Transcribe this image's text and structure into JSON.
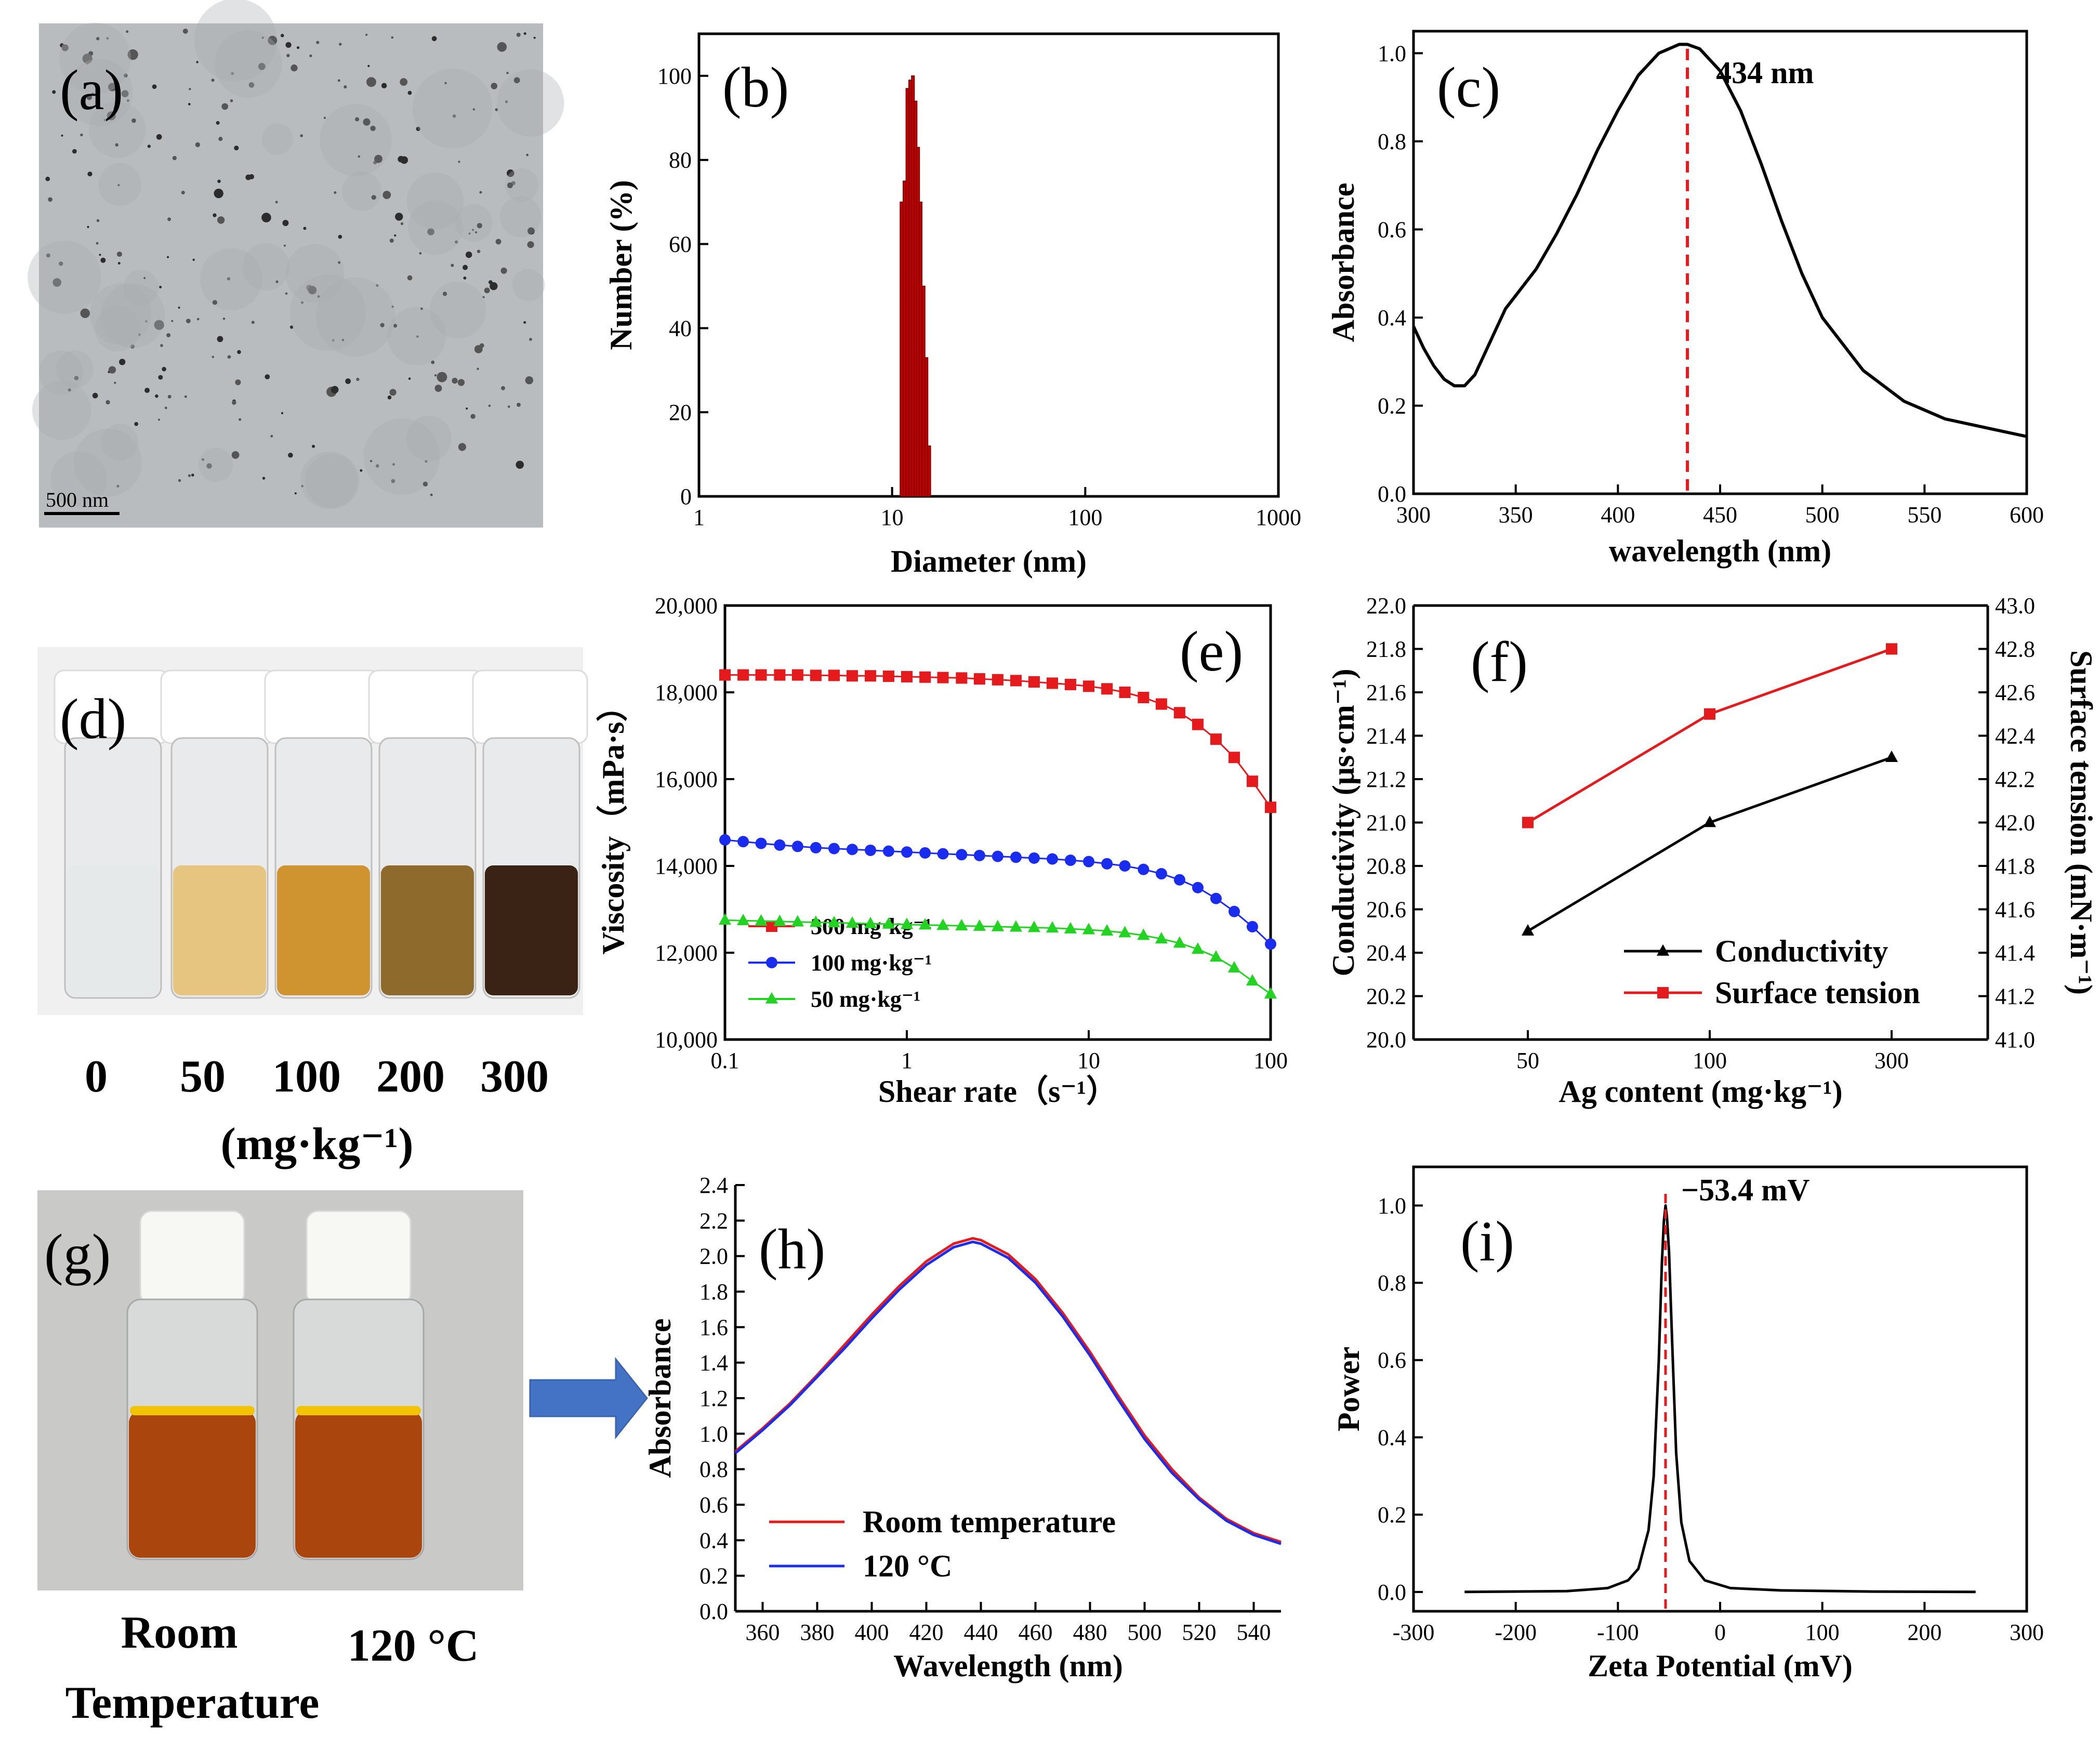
{
  "figure": {
    "panel_labels": [
      "(a)",
      "(b)",
      "(c)",
      "(d)",
      "(e)",
      "(f)",
      "(g)",
      "(h)",
      "(i)"
    ],
    "colors": {
      "red": "#e41a1c",
      "blue": "#1a2cf0",
      "green": "#22d322",
      "black": "#000000",
      "bar": "#c00000",
      "arrow": "#4472c4"
    }
  },
  "panel_a": {
    "label": "(a)",
    "scale_bar": "500 nm",
    "image": "tem-micrograph"
  },
  "panel_d": {
    "label": "(d)",
    "vial_labels": [
      "0",
      "50",
      "100",
      "200",
      "300"
    ],
    "unit": "(mg·kg⁻¹)",
    "vial_colors": [
      "#e6e9ea",
      "#e5c57f",
      "#cf9330",
      "#8e6a2c",
      "#3a2314"
    ]
  },
  "panel_g": {
    "label": "(g)",
    "vial_labels": [
      "Room\nTemperature",
      "120 °C"
    ],
    "vial_label_lines": [
      "Room",
      "Temperature",
      "120 °C"
    ]
  },
  "chart_data": [
    {
      "panel": "(b)",
      "type": "bar",
      "title": "",
      "xlabel": "Diameter (nm)",
      "ylabel": "Number (%)",
      "xscale": "log",
      "xlim": [
        1,
        1000
      ],
      "ylim": [
        0,
        110
      ],
      "xticks": [
        "1",
        "10",
        "100",
        "1000"
      ],
      "yticks": [
        "0",
        "20",
        "40",
        "60",
        "80",
        "100"
      ],
      "x": [
        11.0,
        11.4,
        11.8,
        12.2,
        12.6,
        13.0,
        13.4,
        13.8,
        14.3,
        14.8,
        15.3
      ],
      "values": [
        70,
        75,
        97,
        99,
        100,
        94,
        83,
        70,
        50,
        33,
        12
      ]
    },
    {
      "panel": "(c)",
      "type": "line",
      "xlabel": "wavelength (nm)",
      "ylabel": "Absorbance",
      "xlim": [
        300,
        600
      ],
      "ylim": [
        0,
        1.05
      ],
      "xticks": [
        "300",
        "350",
        "400",
        "450",
        "500",
        "550",
        "600"
      ],
      "yticks": [
        "0.0",
        "0.2",
        "0.4",
        "0.6",
        "0.8",
        "1.0"
      ],
      "annotation": "434 nm",
      "peak_x": 434,
      "series": [
        {
          "name": "Absorbance",
          "x": [
            300,
            305,
            310,
            315,
            320,
            325,
            330,
            335,
            340,
            345,
            350,
            360,
            370,
            380,
            390,
            400,
            410,
            420,
            430,
            434,
            440,
            450,
            460,
            470,
            480,
            490,
            500,
            520,
            540,
            560,
            580,
            600
          ],
          "y": [
            0.38,
            0.33,
            0.29,
            0.26,
            0.245,
            0.245,
            0.27,
            0.32,
            0.37,
            0.42,
            0.45,
            0.51,
            0.59,
            0.68,
            0.78,
            0.87,
            0.95,
            1.0,
            1.02,
            1.02,
            1.01,
            0.96,
            0.87,
            0.75,
            0.62,
            0.5,
            0.4,
            0.28,
            0.21,
            0.17,
            0.15,
            0.13
          ]
        }
      ]
    },
    {
      "panel": "(e)",
      "type": "line",
      "xlabel": "Shear rate（s⁻¹）",
      "ylabel": "Viscosity（mPa·s）",
      "xscale": "log",
      "xlim": [
        0.1,
        100
      ],
      "ylim": [
        10000,
        20000
      ],
      "xticks": [
        "0.1",
        "1",
        "10",
        "100"
      ],
      "yticks": [
        "10,000",
        "12,000",
        "14,000",
        "16,000",
        "18,000",
        "20,000"
      ],
      "legend": [
        "300 mg·kg⁻¹",
        "100 mg·kg⁻¹",
        "50 mg·kg⁻¹"
      ],
      "series": [
        {
          "name": "300 mg·kg⁻¹",
          "marker": "square",
          "color": "#e41a1c",
          "x": [
            0.1,
            0.126,
            0.158,
            0.2,
            0.251,
            0.316,
            0.398,
            0.501,
            0.631,
            0.794,
            1,
            1.26,
            1.58,
            2,
            2.51,
            3.16,
            3.98,
            5.01,
            6.31,
            7.94,
            10,
            12.6,
            15.8,
            20,
            25.1,
            31.6,
            39.8,
            50.1,
            63.1,
            79.4,
            100
          ],
          "y": [
            18400,
            18400,
            18400,
            18400,
            18400,
            18390,
            18390,
            18380,
            18380,
            18370,
            18360,
            18350,
            18340,
            18330,
            18310,
            18290,
            18270,
            18240,
            18210,
            18180,
            18140,
            18080,
            18000,
            17880,
            17730,
            17530,
            17260,
            16920,
            16500,
            15950,
            15350
          ]
        },
        {
          "name": "100 mg·kg⁻¹",
          "marker": "circle",
          "color": "#1a2cf0",
          "x": [
            0.1,
            0.126,
            0.158,
            0.2,
            0.251,
            0.316,
            0.398,
            0.501,
            0.631,
            0.794,
            1,
            1.26,
            1.58,
            2,
            2.51,
            3.16,
            3.98,
            5.01,
            6.31,
            7.94,
            10,
            12.6,
            15.8,
            20,
            25.1,
            31.6,
            39.8,
            50.1,
            63.1,
            79.4,
            100
          ],
          "y": [
            14600,
            14560,
            14520,
            14480,
            14450,
            14420,
            14400,
            14380,
            14360,
            14340,
            14320,
            14300,
            14280,
            14260,
            14240,
            14220,
            14200,
            14180,
            14160,
            14130,
            14100,
            14050,
            14000,
            13920,
            13820,
            13680,
            13500,
            13250,
            12950,
            12600,
            12200
          ]
        },
        {
          "name": "50 mg·kg⁻¹",
          "marker": "triangle",
          "color": "#22d322",
          "x": [
            0.1,
            0.126,
            0.158,
            0.2,
            0.251,
            0.316,
            0.398,
            0.501,
            0.631,
            0.794,
            1,
            1.26,
            1.58,
            2,
            2.51,
            3.16,
            3.98,
            5.01,
            6.31,
            7.94,
            10,
            12.6,
            15.8,
            20,
            25.1,
            31.6,
            39.8,
            50.1,
            63.1,
            79.4,
            100
          ],
          "y": [
            12750,
            12740,
            12730,
            12720,
            12710,
            12700,
            12690,
            12680,
            12670,
            12660,
            12650,
            12640,
            12630,
            12620,
            12610,
            12600,
            12590,
            12580,
            12570,
            12550,
            12530,
            12500,
            12460,
            12400,
            12320,
            12220,
            12080,
            11900,
            11650,
            11350,
            11050
          ]
        }
      ]
    },
    {
      "panel": "(f)",
      "type": "line",
      "xlabel": "Ag content (mg·kg⁻¹)",
      "ylabel": "Conductivity (μs·cm⁻¹)",
      "y2label": "Surface tension (mN·m⁻¹)",
      "categories": [
        "50",
        "100",
        "300"
      ],
      "ylim": [
        20.0,
        22.0
      ],
      "y2lim": [
        41.0,
        43.0
      ],
      "yticks": [
        "20.0",
        "20.2",
        "20.4",
        "20.6",
        "20.8",
        "21.0",
        "21.2",
        "21.4",
        "21.6",
        "21.8",
        "22.0"
      ],
      "y2ticks": [
        "41.0",
        "41.2",
        "41.4",
        "41.6",
        "41.8",
        "42.0",
        "42.2",
        "42.4",
        "42.6",
        "42.8",
        "43.0"
      ],
      "legend": [
        "Conductivity",
        "Surface tension"
      ],
      "series": [
        {
          "name": "Conductivity",
          "axis": "left",
          "marker": "triangle",
          "color": "#000000",
          "values": [
            20.5,
            21.0,
            21.3
          ]
        },
        {
          "name": "Surface tension",
          "axis": "right",
          "marker": "square",
          "color": "#e41a1c",
          "values": [
            42.0,
            42.5,
            42.8
          ]
        }
      ]
    },
    {
      "panel": "(h)",
      "type": "line",
      "xlabel": "Wavelength (nm)",
      "ylabel": "Absorbance",
      "xlim": [
        350,
        550
      ],
      "ylim": [
        0,
        2.4
      ],
      "xticks": [
        "360",
        "380",
        "400",
        "420",
        "440",
        "460",
        "480",
        "500",
        "520",
        "540"
      ],
      "yticks": [
        "0.0",
        "0.2",
        "0.4",
        "0.6",
        "0.8",
        "1.0",
        "1.2",
        "1.4",
        "1.6",
        "1.8",
        "2.0",
        "2.2",
        "2.4"
      ],
      "legend": [
        "Room temperature",
        "120 °C"
      ],
      "series": [
        {
          "name": "Room temperature",
          "color": "#e41a1c",
          "x": [
            350,
            360,
            370,
            380,
            390,
            400,
            410,
            420,
            430,
            437,
            440,
            450,
            460,
            470,
            480,
            490,
            500,
            510,
            520,
            530,
            540,
            550
          ],
          "y": [
            0.9,
            1.03,
            1.17,
            1.33,
            1.5,
            1.67,
            1.83,
            1.97,
            2.07,
            2.1,
            2.09,
            2.01,
            1.87,
            1.68,
            1.46,
            1.22,
            0.99,
            0.8,
            0.64,
            0.52,
            0.44,
            0.39
          ]
        },
        {
          "name": "120 °C",
          "color": "#1a2cf0",
          "x": [
            350,
            360,
            370,
            380,
            390,
            400,
            410,
            420,
            430,
            437,
            440,
            450,
            460,
            470,
            480,
            490,
            500,
            510,
            520,
            530,
            540,
            550
          ],
          "y": [
            0.89,
            1.02,
            1.16,
            1.32,
            1.48,
            1.65,
            1.81,
            1.95,
            2.05,
            2.08,
            2.07,
            1.99,
            1.85,
            1.66,
            1.44,
            1.2,
            0.97,
            0.78,
            0.63,
            0.51,
            0.43,
            0.38
          ]
        }
      ]
    },
    {
      "panel": "(i)",
      "type": "line",
      "xlabel": "Zeta Potential (mV)",
      "ylabel": "Power",
      "xlim": [
        -300,
        300
      ],
      "ylim": [
        -0.05,
        1.1
      ],
      "xticks": [
        "-300",
        "-200",
        "-100",
        "0",
        "100",
        "200",
        "300"
      ],
      "yticks": [
        "0.0",
        "0.2",
        "0.4",
        "0.6",
        "0.8",
        "1.0"
      ],
      "annotation": "−53.4 mV",
      "peak_x": -53.4,
      "series": [
        {
          "name": "Power",
          "color": "#000000",
          "x": [
            -250,
            -150,
            -110,
            -90,
            -80,
            -70,
            -65,
            -60,
            -57,
            -55,
            -53.4,
            -52,
            -50,
            -47,
            -43,
            -38,
            -30,
            -15,
            10,
            60,
            150,
            250
          ],
          "y": [
            0.0,
            0.002,
            0.01,
            0.03,
            0.06,
            0.16,
            0.3,
            0.6,
            0.85,
            0.96,
            1.0,
            0.97,
            0.88,
            0.65,
            0.36,
            0.18,
            0.08,
            0.03,
            0.01,
            0.004,
            0.001,
            0.0
          ]
        }
      ]
    }
  ]
}
